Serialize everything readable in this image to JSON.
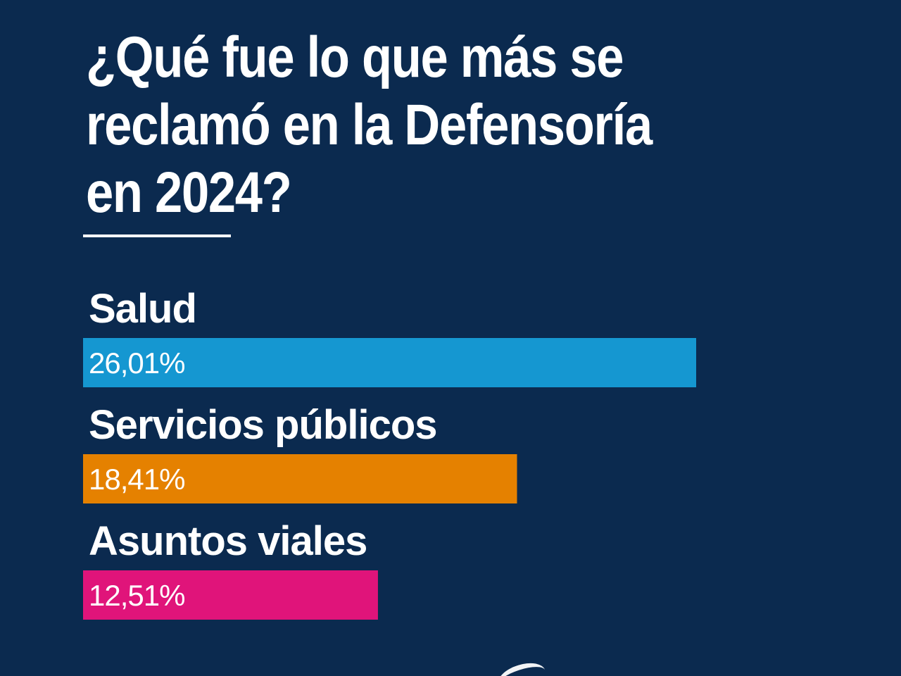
{
  "title_lines": [
    "¿Qué fue lo que más se",
    "reclamó en la Defensoría",
    "en 2024?"
  ],
  "colors": {
    "background": "#0b2a4f",
    "text": "#ffffff",
    "salud": "#1597d1",
    "servicios": "#e58100",
    "viales": "#e0147a"
  },
  "chart_data": {
    "type": "bar",
    "orientation": "horizontal",
    "title": "¿Qué fue lo que más se reclamó en la Defensoría en 2024?",
    "categories": [
      "Salud",
      "Servicios públicos",
      "Asuntos viales"
    ],
    "values": [
      26.01,
      18.41,
      12.51
    ],
    "value_labels": [
      "26,01%",
      "18,41%",
      "12,51%"
    ],
    "unit": "%",
    "colors": [
      "#1597d1",
      "#e58100",
      "#e0147a"
    ],
    "xlabel": "",
    "ylabel": "",
    "grid": false,
    "legend": "none"
  }
}
